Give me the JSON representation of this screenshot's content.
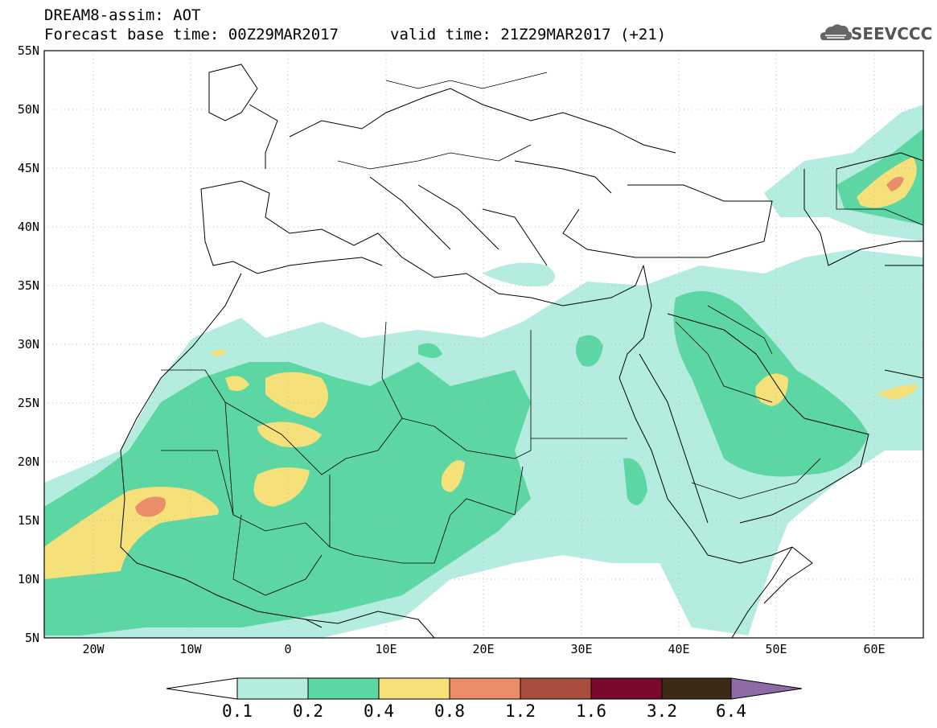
{
  "header": {
    "title_line1": "DREAM8-assim: AOT",
    "title_line2": "Forecast base time: 00Z29MAR2017",
    "valid_time": "valid time: 21Z29MAR2017 (+21)",
    "logo_text": "SEEVCCC"
  },
  "axes": {
    "lat_labels": [
      "55N",
      "50N",
      "45N",
      "40N",
      "35N",
      "30N",
      "25N",
      "20N",
      "15N",
      "10N",
      "5N"
    ],
    "lon_labels": [
      "20W",
      "10W",
      "0",
      "10E",
      "20E",
      "30E",
      "40E",
      "50E",
      "60E"
    ]
  },
  "colorbar": {
    "levels": [
      "0.1",
      "0.2",
      "0.4",
      "0.8",
      "1.2",
      "1.6",
      "3.2",
      "6.4"
    ],
    "colors": [
      "#ffffff",
      "#b4ece0",
      "#5cd6a3",
      "#f5e07a",
      "#e98e68",
      "#a84c3c",
      "#7a0a2a",
      "#3d2a16",
      "#8e6aa6"
    ]
  }
}
